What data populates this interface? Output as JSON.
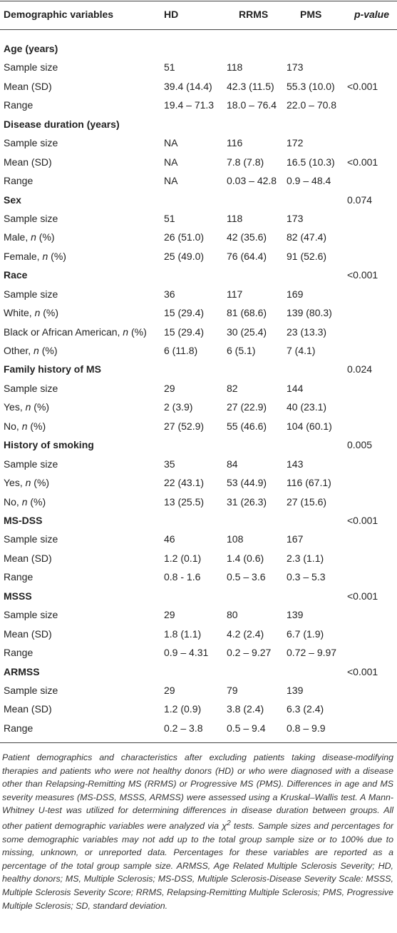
{
  "table": {
    "header": [
      "Demographic variables",
      "HD",
      "RRMS",
      "PMS",
      [
        "p",
        "-value"
      ]
    ],
    "sections": [
      {
        "title": "Age (years)",
        "rows": [
          [
            "Sample size",
            "51",
            "118",
            "173"
          ],
          [
            "Mean (SD)",
            "39.4 (14.4)",
            "42.3 (11.5)",
            "55.3 (10.0)",
            "<0.001"
          ],
          [
            "Range",
            "19.4 – 71.3",
            "18.0 – 76.4",
            "22.0 – 70.8"
          ]
        ]
      },
      {
        "title": "Disease duration (years)",
        "rows": [
          [
            "Sample size",
            "NA",
            "116",
            "172"
          ],
          [
            "Mean (SD)",
            "NA",
            "7.8 (7.8)",
            "16.5 (10.3)",
            "<0.001"
          ],
          [
            "Range",
            "NA",
            "0.03 – 42.8",
            "0.9 – 48.4"
          ]
        ]
      },
      {
        "title": "Sex",
        "p_value": "0.074",
        "rows": [
          [
            "Sample size",
            "51",
            "118",
            "173"
          ],
          [
            [
              "Male, ",
              "n",
              " (%)"
            ],
            "26 (51.0)",
            "42 (35.6)",
            "82 (47.4)"
          ],
          [
            [
              "Female, ",
              "n",
              " (%)"
            ],
            "25 (49.0)",
            "76 (64.4)",
            "91 (52.6)"
          ]
        ]
      },
      {
        "title": "Race",
        "p_value": "<0.001",
        "rows": [
          [
            "Sample size",
            "36",
            "117",
            "169"
          ],
          [
            [
              "White, ",
              "n",
              " (%)"
            ],
            "15 (29.4)",
            "81 (68.6)",
            "139 (80.3)"
          ],
          [
            [
              "Black or African American, ",
              "n",
              " (%)"
            ],
            "15 (29.4)",
            "30 (25.4)",
            "23 (13.3)"
          ],
          [
            [
              "Other, ",
              "n",
              " (%)"
            ],
            "6 (11.8)",
            "6 (5.1)",
            "7 (4.1)"
          ]
        ]
      },
      {
        "title": "Family history of MS",
        "p_value": "0.024",
        "rows": [
          [
            "Sample size",
            "29",
            "82",
            "144"
          ],
          [
            [
              "Yes, ",
              "n",
              " (%)"
            ],
            "2 (3.9)",
            "27 (22.9)",
            "40 (23.1)"
          ],
          [
            [
              "No, ",
              "n",
              " (%)"
            ],
            "27 (52.9)",
            "55 (46.6)",
            "104 (60.1)"
          ]
        ]
      },
      {
        "title": "History of smoking",
        "p_value": "0.005",
        "rows": [
          [
            "Sample size",
            "35",
            "84",
            "143"
          ],
          [
            [
              "Yes, ",
              "n",
              " (%)"
            ],
            "22 (43.1)",
            "53 (44.9)",
            "116 (67.1)"
          ],
          [
            [
              "No, ",
              "n",
              " (%)"
            ],
            "13 (25.5)",
            "31 (26.3)",
            "27 (15.6)"
          ]
        ]
      },
      {
        "title": "MS-DSS",
        "p_value": "<0.001",
        "rows": [
          [
            "Sample size",
            "46",
            "108",
            "167"
          ],
          [
            "Mean (SD)",
            "1.2 (0.1)",
            "1.4 (0.6)",
            "2.3 (1.1)"
          ],
          [
            "Range",
            "0.8 - 1.6",
            "0.5 – 3.6",
            "0.3 – 5.3"
          ]
        ]
      },
      {
        "title": "MSSS",
        "p_value": "<0.001",
        "rows": [
          [
            "Sample size",
            "29",
            "80",
            "139"
          ],
          [
            "Mean (SD)",
            "1.8 (1.1)",
            "4.2 (2.4)",
            "6.7 (1.9)"
          ],
          [
            "Range",
            "0.9 – 4.31",
            "0.2 – 9.27",
            "0.72 – 9.97"
          ]
        ]
      },
      {
        "title": "ARMSS",
        "p_value": "<0.001",
        "rows": [
          [
            "Sample size",
            "29",
            "79",
            "139"
          ],
          [
            "Mean (SD)",
            "1.2 (0.9)",
            "3.8 (2.4)",
            "6.3 (2.4)"
          ],
          [
            "Range",
            "0.2 – 3.8",
            "0.5 – 9.4",
            "0.8 – 9.9"
          ]
        ]
      }
    ],
    "footnote": [
      "Patient demographics and characteristics after excluding patients taking disease-modifying therapies and patients who were not healthy donors (HD) or who were diagnosed with a disease other than Relapsing-Remitting MS (RRMS) or Progressive MS (PMS). Differences in age and MS severity measures (MS-DSS, MSSS, ARMSS) were assessed using a Kruskal–Wallis test. A Mann-Whitney U-test was utilized for determining differences in disease duration between groups. All other patient demographic variables were analyzed via χ",
      "2",
      " tests. Sample sizes and percentages for some demographic variables may not add up to the total group sample size or to 100% due to missing, unknown, or unreported data. Percentages for these variables are reported as a percentage of the total group sample size. ARMSS, Age Related Multiple Sclerosis Severity; HD, healthy donors; MS, Multiple Sclerosis; MS-DSS, Multiple Sclerosis-Disease Severity Scale: MSSS, Multiple Sclerosis Severity Score; RRMS, Relapsing-Remitting Multiple Sclerosis; PMS, Progressive Multiple Sclerosis; SD, standard deviation."
    ]
  }
}
